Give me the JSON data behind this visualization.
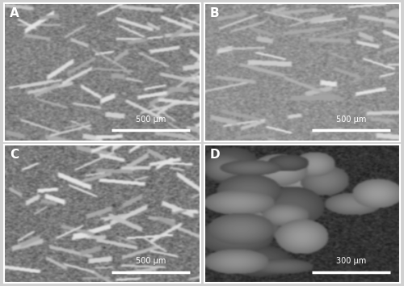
{
  "figsize": [
    5.0,
    3.54
  ],
  "dpi": 100,
  "panels": [
    "A",
    "B",
    "C",
    "D"
  ],
  "scale_labels": [
    "500 μm",
    "500 μm",
    "500 μm",
    "300 μm"
  ],
  "bg_colors": [
    "#aaaaaa",
    "#b0b0b0",
    "#999999",
    "#444444"
  ],
  "label_color": "white",
  "label_fontsize": 11,
  "scalebar_color": "white",
  "scalebar_text_color": "white",
  "scalebar_fontsize": 7,
  "border_color": "white",
  "border_lw": 1.5,
  "outer_bg": "#d0d0d0",
  "seeds": [
    42,
    7,
    13,
    99
  ],
  "panel_means": [
    130,
    145,
    120,
    60
  ],
  "panel_stds": [
    30,
    25,
    35,
    40
  ]
}
